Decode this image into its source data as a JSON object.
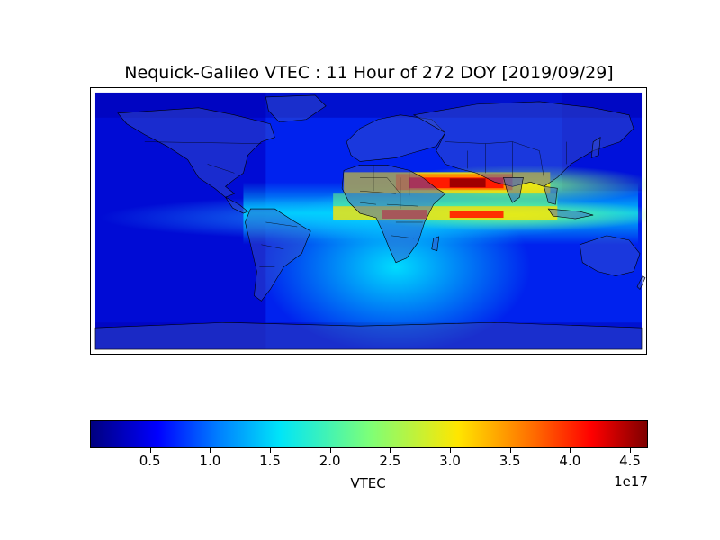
{
  "title": "Nequick-Galileo VTEC : 11 Hour of 272 DOY [2019/09/29]",
  "colorbar": {
    "label": "VTEC",
    "offset_text": "1e17",
    "colormap": "jet",
    "range": [
      0.0,
      4.65
    ],
    "ticks": [
      {
        "value": 0.5,
        "label": "0.5"
      },
      {
        "value": 1.0,
        "label": "1.0"
      },
      {
        "value": 1.5,
        "label": "1.5"
      },
      {
        "value": 2.0,
        "label": "2.0"
      },
      {
        "value": 2.5,
        "label": "2.5"
      },
      {
        "value": 3.0,
        "label": "3.0"
      },
      {
        "value": 3.5,
        "label": "3.5"
      },
      {
        "value": 4.0,
        "label": "4.0"
      },
      {
        "value": 4.5,
        "label": "4.5"
      }
    ]
  },
  "map": {
    "projection": "cylindrical",
    "lon_range": [
      -180,
      180
    ],
    "lat_range": [
      -87.5,
      87.5
    ],
    "field": "VTEC"
  }
}
